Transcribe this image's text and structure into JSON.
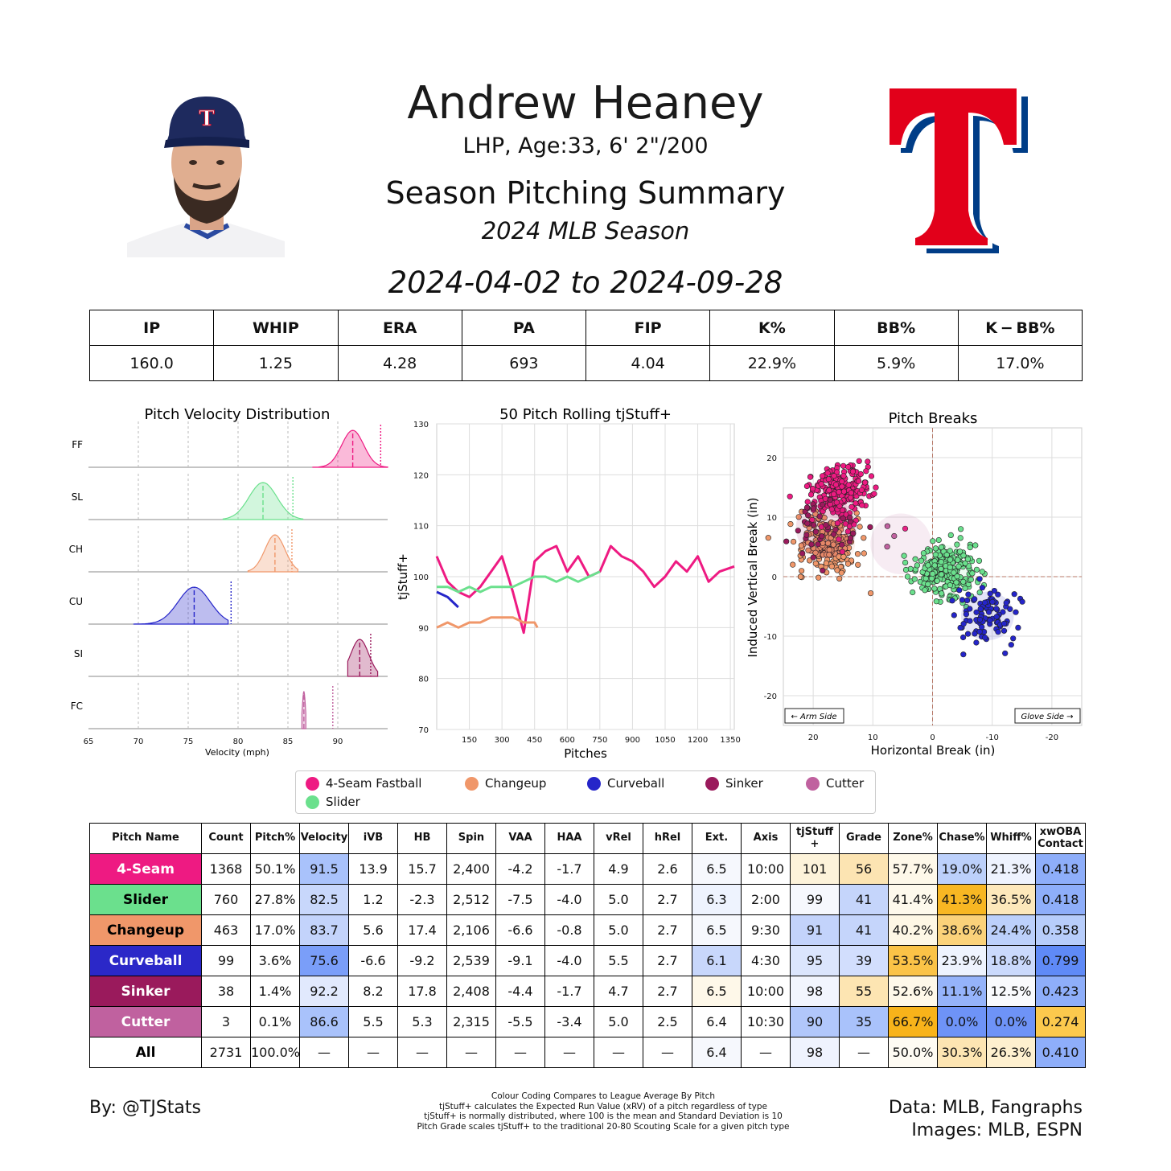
{
  "header": {
    "name": "Andrew Heaney",
    "bio": "LHP, Age:33, 6' 2\"/200",
    "subtitle": "Season Pitching Summary",
    "season": "2024 MLB Season",
    "date_range": "2024-04-02 to 2024-09-28",
    "team_logo_letter": "T",
    "colors": {
      "team_red": "#e2001a",
      "team_blue": "#003d87"
    }
  },
  "season_stats": {
    "headers": [
      "IP",
      "WHIP",
      "ERA",
      "PA",
      "FIP",
      "K%",
      "BB%",
      "K − BB%"
    ],
    "values": [
      "160.0",
      "1.25",
      "4.28",
      "693",
      "4.04",
      "22.9%",
      "5.9%",
      "17.0%"
    ]
  },
  "legend": {
    "items": [
      {
        "label": "4-Seam Fastball",
        "color": "#ee1a82"
      },
      {
        "label": "Changeup",
        "color": "#f0976a"
      },
      {
        "label": "Curveball",
        "color": "#2525c9"
      },
      {
        "label": "Sinker",
        "color": "#9a1a5c"
      },
      {
        "label": "Cutter",
        "color": "#c0619f"
      },
      {
        "label": "Slider",
        "color": "#6be08d"
      }
    ]
  },
  "chart_data": [
    {
      "type": "area",
      "title": "Pitch Velocity Distribution",
      "xlabel": "Velocity (mph)",
      "xlim": [
        65,
        95
      ],
      "xticks": [
        65,
        70,
        75,
        80,
        85,
        90
      ],
      "series": [
        {
          "name": "FF",
          "color": "#ee1a82",
          "min": 87.5,
          "max": 95.0,
          "mean": 91.5,
          "sd": 1.1,
          "league_avg": 94.3
        },
        {
          "name": "SL",
          "color": "#6be08d",
          "min": 78.5,
          "max": 86.5,
          "mean": 82.5,
          "sd": 1.4,
          "league_avg": 85.5
        },
        {
          "name": "CH",
          "color": "#f0976a",
          "min": 81.0,
          "max": 86.0,
          "mean": 83.7,
          "sd": 1.0,
          "league_avg": 85.4
        },
        {
          "name": "CU",
          "color": "#2525c9",
          "min": 69.5,
          "max": 79.0,
          "mean": 75.6,
          "sd": 1.6,
          "league_avg": 79.3
        },
        {
          "name": "SI",
          "color": "#9a1a5c",
          "min": 91.0,
          "max": 94.0,
          "mean": 92.2,
          "sd": 0.9,
          "league_avg": 93.3
        },
        {
          "name": "FC",
          "color": "#c0619f",
          "min": 86.4,
          "max": 86.8,
          "mean": 86.6,
          "sd": 0.15,
          "league_avg": 89.5
        }
      ]
    },
    {
      "type": "line",
      "title": "50 Pitch Rolling tjStuff+",
      "xlabel": "Pitches",
      "ylabel": "tjStuff+",
      "xlim": [
        0,
        1368
      ],
      "ylim": [
        70,
        130
      ],
      "xticks": [
        150,
        300,
        450,
        600,
        750,
        900,
        1050,
        1200,
        1350
      ],
      "yticks": [
        70,
        80,
        90,
        100,
        110,
        120,
        130
      ],
      "series": [
        {
          "name": "4-Seam Fastball",
          "color": "#ee1a82",
          "x": [
            0,
            50,
            100,
            150,
            200,
            250,
            300,
            350,
            400,
            450,
            500,
            550,
            600,
            650,
            700,
            750,
            800,
            850,
            900,
            950,
            1000,
            1050,
            1100,
            1150,
            1200,
            1250,
            1300,
            1368
          ],
          "y": [
            104,
            99,
            97,
            96,
            98,
            101,
            104,
            97,
            89,
            103,
            105,
            106,
            101,
            104,
            100,
            101,
            106,
            104,
            103,
            101,
            98,
            100,
            103,
            101,
            104,
            99,
            101,
            102
          ]
        },
        {
          "name": "Slider",
          "color": "#6be08d",
          "x": [
            0,
            50,
            100,
            150,
            200,
            250,
            300,
            350,
            400,
            450,
            500,
            550,
            600,
            650,
            700,
            750
          ],
          "y": [
            98,
            98,
            97,
            98,
            97,
            98,
            98,
            98,
            99,
            100,
            100,
            99,
            100,
            99,
            100,
            101
          ]
        },
        {
          "name": "Changeup",
          "color": "#f0976a",
          "x": [
            0,
            50,
            100,
            150,
            200,
            250,
            300,
            350,
            400,
            450,
            463
          ],
          "y": [
            90,
            91,
            90,
            91,
            91,
            92,
            92,
            92,
            91,
            91,
            90
          ]
        },
        {
          "name": "Curveball",
          "color": "#2525c9",
          "x": [
            0,
            50,
            99
          ],
          "y": [
            97,
            96,
            94
          ]
        }
      ]
    },
    {
      "type": "scatter",
      "title": "Pitch Breaks",
      "xlabel": "Horizontal Break (in)",
      "ylabel": "Induced Vertical Break (in)",
      "xlim": [
        25,
        -25
      ],
      "ylim": [
        -25,
        25
      ],
      "xticks": [
        20,
        10,
        0,
        -10,
        -20
      ],
      "yticks": [
        20,
        10,
        0,
        -10,
        -20
      ],
      "annotations": [
        "← Arm Side",
        "Glove Side →"
      ],
      "series": [
        {
          "name": "4-Seam Fastball",
          "color": "#ee1a82",
          "mean_hb": 15.7,
          "mean_ivb": 13.9,
          "count": 1368
        },
        {
          "name": "Slider",
          "color": "#6be08d",
          "mean_hb": -2.3,
          "mean_ivb": 1.2,
          "count": 760
        },
        {
          "name": "Changeup",
          "color": "#f0976a",
          "mean_hb": 17.4,
          "mean_ivb": 5.6,
          "count": 463
        },
        {
          "name": "Curveball",
          "color": "#2525c9",
          "mean_hb": -9.2,
          "mean_ivb": -6.6,
          "count": 99
        },
        {
          "name": "Sinker",
          "color": "#9a1a5c",
          "mean_hb": 17.8,
          "mean_ivb": 8.2,
          "count": 38
        },
        {
          "name": "Cutter",
          "color": "#c0619f",
          "mean_hb": 5.3,
          "mean_ivb": 5.5,
          "count": 3
        }
      ]
    },
    {
      "type": "table",
      "columns": [
        "Pitch Name",
        "Count",
        "Pitch%",
        "Velocity",
        "iVB",
        "HB",
        "Spin",
        "VAA",
        "HAA",
        "vRel",
        "hRel",
        "Ext.",
        "Axis",
        "tjStuff +",
        "Grade",
        "Zone%",
        "Chase%",
        "Whiff%",
        "xwOBA Contact"
      ],
      "rows": [
        {
          "name": "4-Seam",
          "color": "#ee1a82",
          "text": "#fff",
          "cells": [
            "1368",
            "50.1%",
            "91.5",
            "13.9",
            "15.7",
            "2,400",
            "-4.2",
            "-1.7",
            "4.9",
            "2.6",
            "6.5",
            "10:00",
            "101",
            "56",
            "57.7%",
            "19.0%",
            "21.3%",
            "0.418"
          ],
          "shades": [
            "",
            "",
            "#a9c2fb",
            "",
            "",
            "",
            "",
            "",
            "",
            "",
            "#f6f8fd",
            "",
            "#fdf3da",
            "#fce4b2",
            "#fef8e9",
            "#bcd0fb",
            "#eef3fe",
            "#8eaefa"
          ]
        },
        {
          "name": "Slider",
          "color": "#6be08d",
          "text": "#000",
          "cells": [
            "760",
            "27.8%",
            "82.5",
            "1.2",
            "-2.3",
            "2,512",
            "-7.5",
            "-4.0",
            "5.0",
            "2.7",
            "6.3",
            "2:00",
            "99",
            "41",
            "41.4%",
            "41.3%",
            "36.5%",
            "0.418"
          ],
          "shades": [
            "",
            "",
            "#c8d7fb",
            "",
            "",
            "",
            "",
            "",
            "",
            "",
            "#eef3fe",
            "",
            "#f6f8fd",
            "#c5d5fb",
            "#fef9ec",
            "#f8b723",
            "#fde8bb",
            "#8eaefa"
          ]
        },
        {
          "name": "Changeup",
          "color": "#f0976a",
          "text": "#000",
          "cells": [
            "463",
            "17.0%",
            "83.7",
            "5.6",
            "17.4",
            "2,106",
            "-6.6",
            "-0.8",
            "5.0",
            "2.7",
            "6.5",
            "9:30",
            "91",
            "41",
            "40.2%",
            "38.6%",
            "24.4%",
            "0.358"
          ],
          "shades": [
            "",
            "",
            "#c3d3fb",
            "",
            "",
            "",
            "",
            "",
            "",
            "",
            "#f6f8fd",
            "",
            "#c3d3fb",
            "#c5d5fb",
            "#fef7e5",
            "#fbd27a",
            "#bcd0fb",
            "#b7cdfb"
          ]
        },
        {
          "name": "Curveball",
          "color": "#2b28c8",
          "text": "#fff",
          "cells": [
            "99",
            "3.6%",
            "75.6",
            "-6.6",
            "-9.2",
            "2,539",
            "-9.1",
            "-4.0",
            "5.5",
            "2.7",
            "6.1",
            "4:30",
            "95",
            "39",
            "53.5%",
            "23.9%",
            "18.8%",
            "0.799"
          ],
          "shades": [
            "",
            "",
            "#7a9ef9",
            "",
            "",
            "",
            "",
            "",
            "",
            "",
            "#c8d7fb",
            "",
            "#dbe5fd",
            "#d2defd",
            "#fbc347",
            "#eef3fe",
            "#cad9fc",
            "#5f8af7"
          ]
        },
        {
          "name": "Sinker",
          "color": "#9a1a5c",
          "text": "#fff",
          "cells": [
            "38",
            "1.4%",
            "92.2",
            "8.2",
            "17.8",
            "2,408",
            "-4.4",
            "-1.7",
            "4.7",
            "2.7",
            "6.5",
            "10:00",
            "98",
            "55",
            "52.6%",
            "11.1%",
            "12.5%",
            "0.423"
          ],
          "shades": [
            "",
            "",
            "#e1e9fd",
            "",
            "",
            "",
            "",
            "",
            "",
            "",
            "#fef8e9",
            "",
            "#f2f5fe",
            "#fde5b2",
            "#fef8e9",
            "#95b3fa",
            "#f9fafd",
            "#8eaefa"
          ]
        },
        {
          "name": "Cutter",
          "color": "#c0619f",
          "text": "#fff",
          "cells": [
            "3",
            "0.1%",
            "86.6",
            "5.5",
            "5.3",
            "2,315",
            "-5.5",
            "-3.4",
            "5.0",
            "2.5",
            "6.4",
            "10:30",
            "90",
            "35",
            "66.7%",
            "0.0%",
            "0.0%",
            "0.274"
          ],
          "shades": [
            "",
            "",
            "#a9c2fb",
            "",
            "",
            "",
            "",
            "",
            "",
            "",
            "",
            "",
            "#b1c7fb",
            "#a9c2fb",
            "#f8b31a",
            "#6e93f7",
            "#6e93f7",
            "#fcc94d"
          ]
        },
        {
          "name": "All",
          "color": "#ffffff",
          "text": "#000",
          "cells": [
            "2731",
            "100.0%",
            "—",
            "—",
            "—",
            "—",
            "—",
            "—",
            "—",
            "—",
            "6.4",
            "—",
            "98",
            "—",
            "50.0%",
            "30.3%",
            "26.3%",
            "0.410"
          ],
          "shades": [
            "",
            "",
            "",
            "",
            "",
            "",
            "",
            "",
            "",
            "",
            "#f6f8fd",
            "",
            "#eff3fe",
            "",
            "#fefbf3",
            "#fde5b2",
            "#fef0cf",
            "#8eaefa"
          ]
        }
      ]
    }
  ],
  "footer": {
    "byline": "By: @TJStats",
    "notes": [
      "Colour Coding Compares to League Average By Pitch",
      "tjStuff+ calculates the Expected Run Value (xRV) of a pitch regardless of type",
      "tjStuff+ is normally distributed, where 100 is the mean and Standard Deviation is 10",
      "Pitch Grade scales tjStuff+ to the traditional 20-80 Scouting Scale for a given pitch type"
    ],
    "data_credit": "Data: MLB, Fangraphs",
    "image_credit": "Images: MLB, ESPN"
  }
}
